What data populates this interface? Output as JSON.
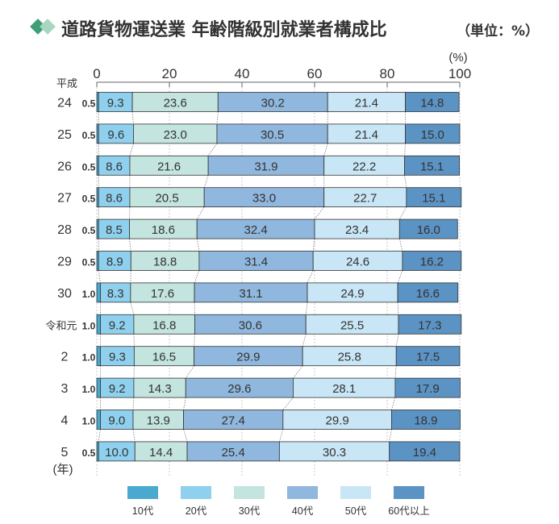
{
  "chart_data": {
    "type": "bar",
    "stacked": true,
    "orientation": "horizontal",
    "title": "道路貨物運送業 年齢階級別就業者構成比",
    "title_unit": "（単位：%）",
    "x_unit": "(%)",
    "xlim": [
      0,
      100
    ],
    "x_ticks": [
      "0",
      "20",
      "40",
      "60",
      "80",
      "100"
    ],
    "era_label": "平成",
    "year_unit": "(年)",
    "categories": [
      "24",
      "25",
      "26",
      "27",
      "28",
      "29",
      "30",
      "令和元",
      "2",
      "3",
      "4",
      "5"
    ],
    "series": [
      {
        "name": "10代",
        "color": "#4aa9cf",
        "values": [
          0.5,
          0.5,
          0.5,
          0.5,
          0.5,
          0.5,
          1.0,
          1.0,
          1.0,
          1.0,
          1.0,
          0.5
        ],
        "labels": [
          "0.5",
          "0.5",
          "0.5",
          "0.5",
          "0.5",
          "0.5",
          "1.0",
          "1.0",
          "1.0",
          "1.0",
          "1.0",
          "0.5"
        ]
      },
      {
        "name": "20代",
        "color": "#8fd0ee",
        "values": [
          9.3,
          9.6,
          8.6,
          8.6,
          8.5,
          8.9,
          8.3,
          9.2,
          9.3,
          9.2,
          9.0,
          10.0
        ],
        "labels": [
          "9.3",
          "9.6",
          "8.6",
          "8.6",
          "8.5",
          "8.9",
          "8.3",
          "9.2",
          "9.3",
          "9.2",
          "9.0",
          "10.0"
        ]
      },
      {
        "name": "30代",
        "color": "#c3e4df",
        "values": [
          23.6,
          23.0,
          21.6,
          20.5,
          18.6,
          18.8,
          17.6,
          16.8,
          16.5,
          14.3,
          13.9,
          14.4
        ],
        "labels": [
          "23.6",
          "23.0",
          "21.6",
          "20.5",
          "18.6",
          "18.8",
          "17.6",
          "16.8",
          "16.5",
          "14.3",
          "13.9",
          "14.4"
        ]
      },
      {
        "name": "40代",
        "color": "#90b7de",
        "values": [
          30.2,
          30.5,
          31.9,
          33.0,
          32.4,
          31.4,
          31.1,
          30.6,
          29.9,
          29.6,
          27.4,
          25.4
        ],
        "labels": [
          "30.2",
          "30.5",
          "31.9",
          "33.0",
          "32.4",
          "31.4",
          "31.1",
          "30.6",
          "29.9",
          "29.6",
          "27.4",
          "25.4"
        ]
      },
      {
        "name": "50代",
        "color": "#c9e6f6",
        "values": [
          21.4,
          21.4,
          22.2,
          22.7,
          23.4,
          24.6,
          24.9,
          25.5,
          25.8,
          28.1,
          29.9,
          30.3
        ],
        "labels": [
          "21.4",
          "21.4",
          "22.2",
          "22.7",
          "23.4",
          "24.6",
          "24.9",
          "25.5",
          "25.8",
          "28.1",
          "29.9",
          "30.3"
        ]
      },
      {
        "name": "60代以上",
        "color": "#5b93c4",
        "values": [
          14.8,
          15.0,
          15.1,
          15.1,
          16.0,
          16.2,
          16.6,
          17.3,
          17.5,
          17.9,
          18.9,
          19.4
        ],
        "labels": [
          "14.8",
          "15.0",
          "15.1",
          "15.1",
          "16.0",
          "16.2",
          "16.6",
          "17.3",
          "17.5",
          "17.9",
          "18.9",
          "19.4"
        ]
      }
    ],
    "legend_position": "bottom",
    "grid": "vertical"
  }
}
